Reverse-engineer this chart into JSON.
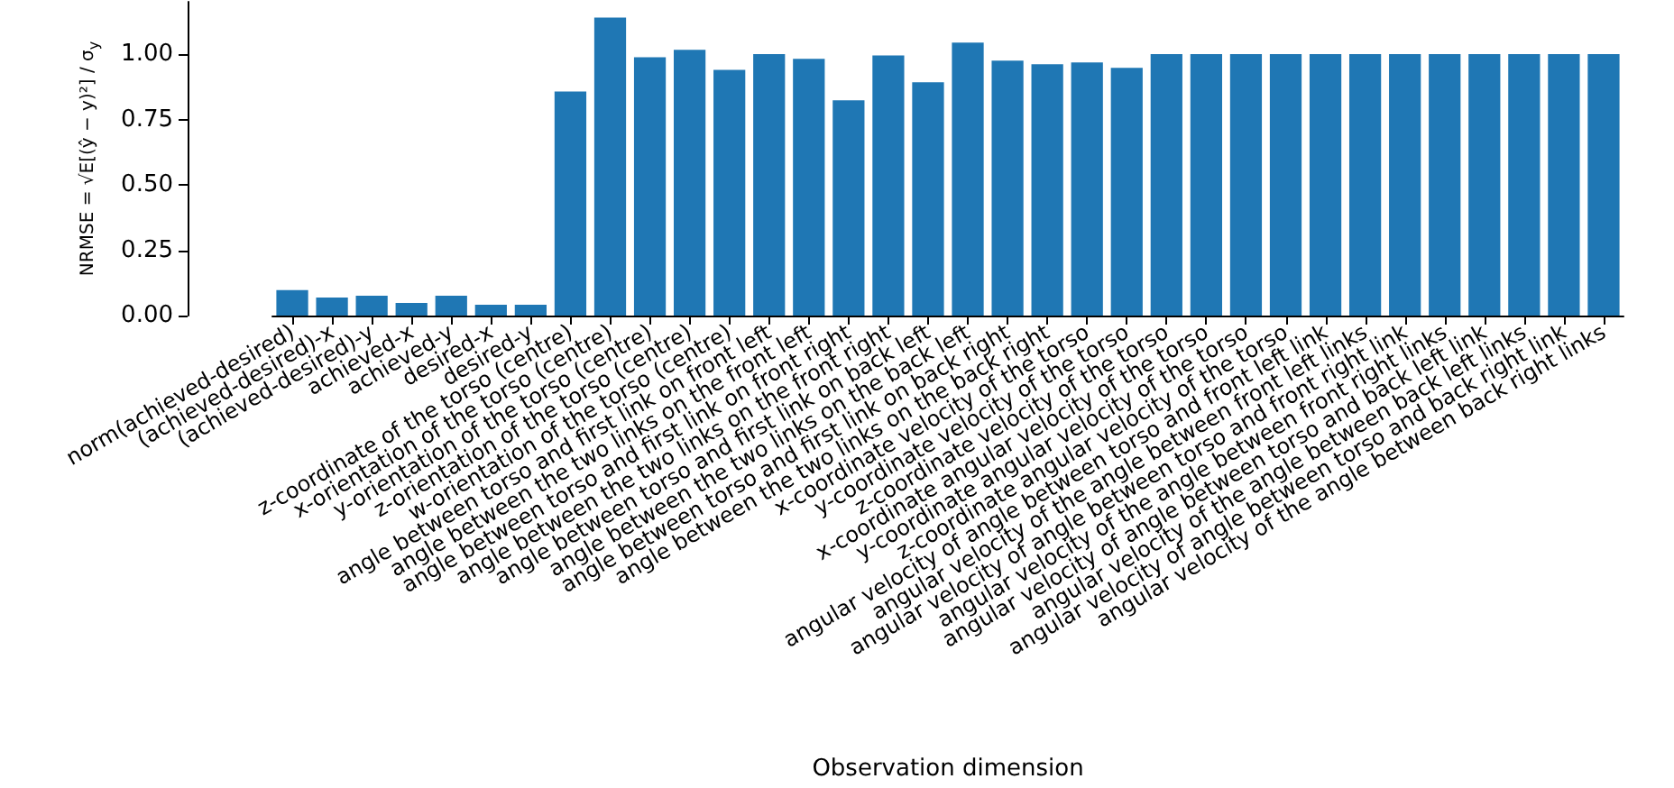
{
  "chart_data": {
    "type": "bar",
    "xlabel": "Observation dimension",
    "ylabel": "NRMSE = √E[(ŷ − y)²] / σ$_{y}$",
    "categories": [
      "norm(achieved-desired)",
      "(achieved-desired)-x",
      "(achieved-desired)-y",
      "achieved-x",
      "achieved-y",
      "desired-x",
      "desired-y",
      "z-coordinate of the torso (centre)",
      "x-orientation of the torso (centre)",
      "y-orientation of the torso (centre)",
      "z-orientation of the torso (centre)",
      "w-orientation of the torso (centre)",
      "angle between torso and first link on front left",
      "angle between the two links on the front left",
      "angle between torso and first link on front right",
      "angle between the two links on the front right",
      "angle between torso and first link on back left",
      "angle between the two links on the back left",
      "angle between torso and first link on back right",
      "angle between the two links on the back right",
      "x-coordinate velocity of the torso",
      "y-coordinate velocity of the torso",
      "z-coordinate velocity of the torso",
      "x-coordinate angular velocity of the torso",
      "y-coordinate angular velocity of the torso",
      "z-coordinate angular velocity of the torso",
      "angular velocity of angle between torso and front left link",
      "angular velocity of the angle between front left links",
      "angular velocity of angle between torso and front right link",
      "angular velocity of the angle between front right links",
      "angular velocity of angle between torso and back left link",
      "angular velocity of the angle between back left links",
      "angular velocity of angle between torso and back right link",
      "angular velocity of the angle between back right links"
    ],
    "values": [
      0.097,
      0.069,
      0.076,
      0.048,
      0.076,
      0.041,
      0.041,
      0.857,
      1.14,
      0.988,
      1.016,
      0.94,
      1.0,
      0.982,
      0.823,
      0.995,
      0.892,
      1.044,
      0.975,
      0.961,
      0.968,
      0.947,
      1.0,
      1.0,
      1.0,
      1.0,
      1.0,
      1.0,
      1.0,
      1.0,
      1.0,
      1.0,
      1.0,
      1.0
    ],
    "color": "#1f77b4",
    "ylim": [
      0,
      1.2
    ],
    "yticks": [
      {
        "value": 0,
        "label": "0.00"
      },
      {
        "value": 0.25,
        "label": "0.25"
      },
      {
        "value": 0.5,
        "label": "0.50"
      },
      {
        "value": 0.75,
        "label": "0.75"
      },
      {
        "value": 1,
        "label": "1.00"
      }
    ]
  }
}
